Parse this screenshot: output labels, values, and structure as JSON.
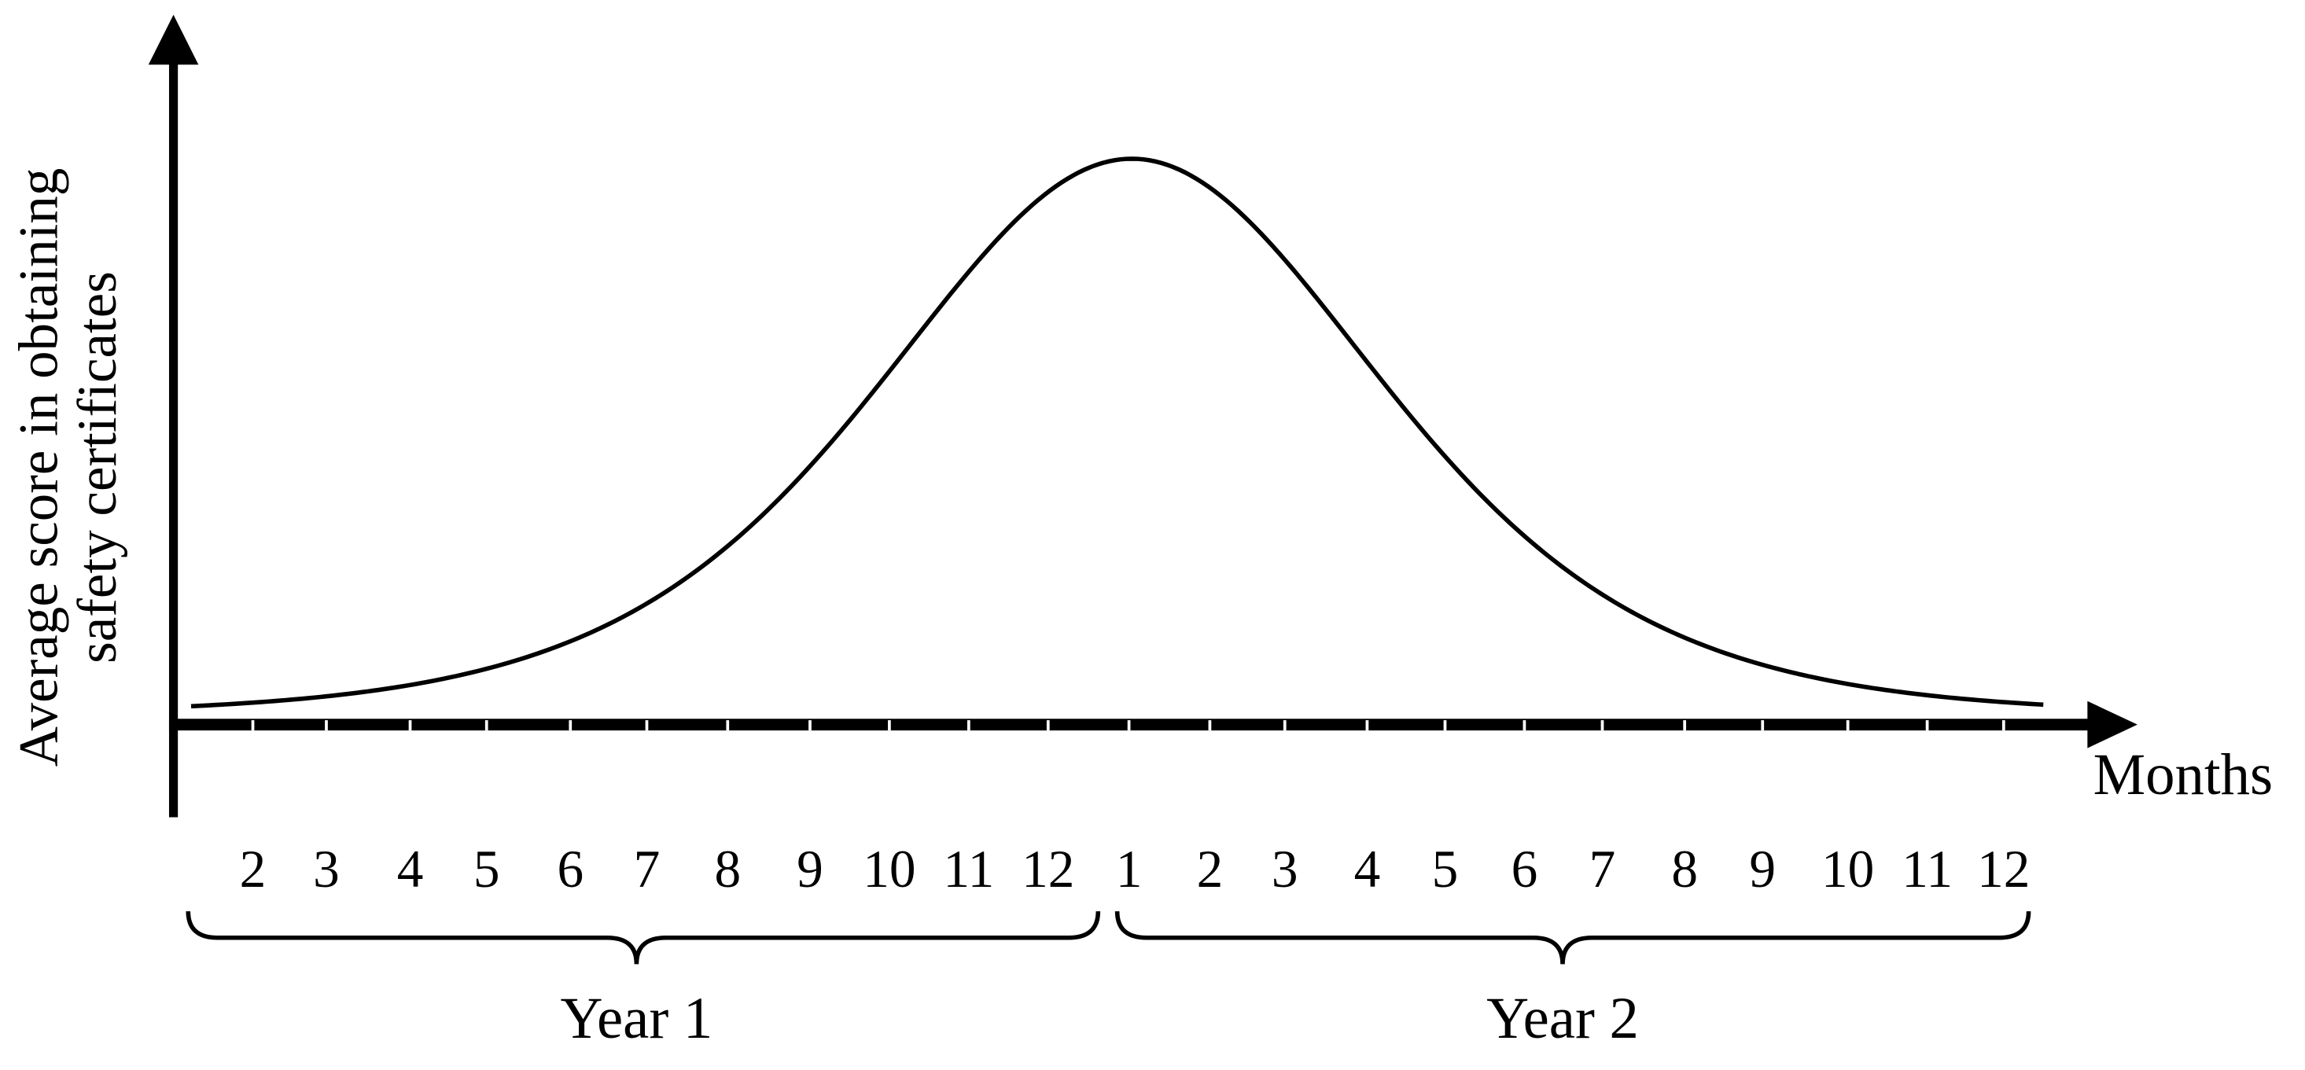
{
  "axes": {
    "y_label": [
      "Average score in obtaining",
      "safety certificates"
    ],
    "x_label": "Months"
  },
  "years": [
    {
      "label": "Year 1",
      "months": [
        "2",
        "3",
        "4",
        "5",
        "6",
        "7",
        "8",
        "9",
        "10",
        "11",
        "12"
      ]
    },
    {
      "label": "Year 2",
      "months": [
        "1",
        "2",
        "3",
        "4",
        "5",
        "6",
        "7",
        "8",
        "9",
        "10",
        "11",
        "12"
      ]
    }
  ]
}
